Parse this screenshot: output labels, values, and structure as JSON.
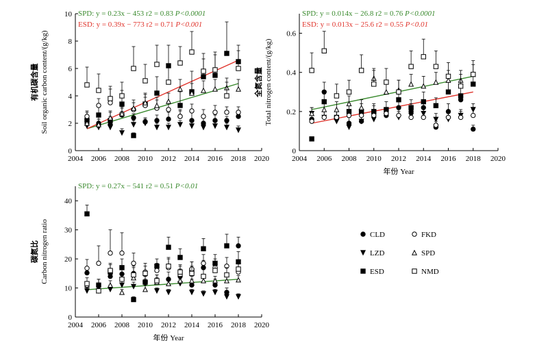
{
  "colors": {
    "SPD": "#3a8a2e",
    "ESD": "#e0332b",
    "axis": "#000000"
  },
  "chart_data": [
    {
      "type": "scatter",
      "xlabel": "",
      "ylabel_cn": "有机碳含量",
      "ylabel": "Soil organic carbon content/(g/kg)",
      "xlim": [
        2004,
        2020
      ],
      "ylim": [
        0,
        10
      ],
      "xticks": [
        "2004",
        "2006",
        "2008",
        "2010",
        "2012",
        "2014",
        "2016",
        "2018",
        "2020"
      ],
      "yticks": [
        "0",
        "2",
        "4",
        "6",
        "8",
        "10"
      ],
      "eq_lines": [
        {
          "series": "SPD",
          "label": "SPD:",
          "equation": "y = 0.23x − 453",
          "r2": "r2 = 0.83",
          "p": "P<0.0001"
        },
        {
          "series": "ESD",
          "label": "ESD:",
          "equation": "y = 0.39x − 773",
          "r2": "r2 = 0.71",
          "p": "P<0.001"
        }
      ],
      "trend_lines": [
        {
          "series": "SPD",
          "x": [
            2005,
            2018
          ],
          "y": [
            1.6,
            4.9
          ]
        },
        {
          "series": "ESD",
          "x": [
            2005,
            2018
          ],
          "y": [
            1.6,
            6.6
          ]
        }
      ],
      "series": [
        {
          "name": "CLD",
          "x": [
            2005,
            2006,
            2007,
            2008,
            2009,
            2010,
            2011,
            2012,
            2013,
            2014,
            2015,
            2016,
            2017,
            2018
          ],
          "y": [
            2.3,
            2.0,
            1.9,
            2.6,
            2.4,
            2.1,
            2.2,
            2.3,
            2.5,
            2.2,
            2.0,
            2.2,
            2.2,
            2.5
          ],
          "err": [
            0.3,
            0.5,
            0.6,
            0.5,
            0.3,
            0.3,
            0.4,
            0.5,
            0.5,
            0.7,
            0.5,
            0.4,
            0.3,
            0.4
          ]
        },
        {
          "name": "LZD",
          "x": [
            2005,
            2006,
            2007,
            2008,
            2009,
            2010,
            2011,
            2012,
            2013,
            2014,
            2015,
            2016,
            2017,
            2018
          ],
          "y": [
            1.8,
            1.7,
            1.7,
            1.3,
            1.9,
            2.0,
            1.7,
            1.7,
            1.9,
            1.8,
            1.7,
            1.8,
            1.7,
            1.5
          ],
          "err": [
            0.3,
            0.4,
            0.4,
            0.3,
            0.3,
            0.3,
            0.3,
            0.3,
            0.3,
            0.3,
            0.3,
            0.3,
            0.3,
            0.3
          ]
        },
        {
          "name": "ESD",
          "x": [
            2005,
            2006,
            2007,
            2008,
            2009,
            2010,
            2011,
            2012,
            2013,
            2014,
            2015,
            2016,
            2017,
            2018
          ],
          "y": [
            2.2,
            2.6,
            2.2,
            3.4,
            1.1,
            3.4,
            4.2,
            6.2,
            3.3,
            4.3,
            5.4,
            5.5,
            7.1,
            6.5
          ],
          "err": [
            0.6,
            0.8,
            0.6,
            1.0,
            0.2,
            0.8,
            1.2,
            1.5,
            1.0,
            1.5,
            1.3,
            1.5,
            2.3,
            1.2
          ]
        },
        {
          "name": "FKD",
          "x": [
            2005,
            2006,
            2007,
            2008,
            2009,
            2010,
            2011,
            2012,
            2013,
            2014,
            2015,
            2016,
            2017,
            2018
          ],
          "y": [
            2.5,
            3.3,
            3.5,
            2.7,
            3.0,
            3.3,
            3.1,
            3.0,
            2.5,
            2.9,
            2.5,
            2.8,
            2.8,
            2.8
          ],
          "err": [
            0.4,
            0.5,
            1.0,
            0.8,
            0.5,
            0.6,
            0.6,
            0.6,
            0.4,
            0.5,
            0.5,
            0.5,
            0.4,
            0.4
          ]
        },
        {
          "name": "SPD",
          "x": [
            2005,
            2006,
            2007,
            2008,
            2009,
            2010,
            2011,
            2012,
            2013,
            2014,
            2015,
            2016,
            2017,
            2018
          ],
          "y": [
            2.0,
            1.9,
            2.4,
            2.7,
            3.1,
            3.5,
            3.3,
            3.6,
            4.5,
            4.2,
            4.4,
            4.5,
            4.6,
            4.5
          ],
          "err": [
            0.3,
            0.4,
            0.5,
            0.5,
            0.6,
            0.6,
            0.6,
            0.6,
            0.7,
            0.7,
            0.7,
            0.7,
            0.7,
            0.7
          ]
        },
        {
          "name": "NMD",
          "x": [
            2005,
            2006,
            2007,
            2008,
            2009,
            2010,
            2011,
            2012,
            2013,
            2014,
            2015,
            2016,
            2017,
            2018
          ],
          "y": [
            4.8,
            4.4,
            3.8,
            4.0,
            6.0,
            5.1,
            6.3,
            5.0,
            6.4,
            7.2,
            5.8,
            5.9,
            4.0,
            6.0
          ],
          "err": [
            1.3,
            1.2,
            0.9,
            1.0,
            1.6,
            1.2,
            1.4,
            1.2,
            1.2,
            1.5,
            1.3,
            1.3,
            1.0,
            1.3
          ]
        }
      ]
    },
    {
      "type": "scatter",
      "xlabel": "年份 Year",
      "ylabel_cn": "全氮含量",
      "ylabel": "Total nitrogen content/(g/kg)",
      "xlim": [
        2004,
        2020
      ],
      "ylim": [
        0,
        0.7
      ],
      "xticks": [
        "2004",
        "2006",
        "2008",
        "2010",
        "2012",
        "2014",
        "2016",
        "2018",
        "2020"
      ],
      "yticks": [
        "0",
        "0.2",
        "0.4",
        "0.6"
      ],
      "eq_lines": [
        {
          "series": "SPD",
          "label": "SPD:",
          "equation": "y = 0.014x − 26.8",
          "r2": "r2 = 0.76",
          "p": "P<0.0001"
        },
        {
          "series": "ESD",
          "label": "ESD:",
          "equation": "y = 0.013x − 25.6",
          "r2": "r2 = 0.55",
          "p": "P<0.01"
        }
      ],
      "trend_lines": [
        {
          "series": "SPD",
          "x": [
            2005,
            2018
          ],
          "y": [
            0.21,
            0.38
          ]
        },
        {
          "series": "ESD",
          "x": [
            2005,
            2018
          ],
          "y": [
            0.14,
            0.3
          ]
        }
      ],
      "series": [
        {
          "name": "CLD",
          "x": [
            2005,
            2006,
            2007,
            2008,
            2009,
            2010,
            2011,
            2012,
            2013,
            2014,
            2015,
            2016,
            2017,
            2018
          ],
          "y": [
            0.16,
            0.3,
            0.17,
            0.14,
            0.15,
            0.19,
            0.18,
            0.22,
            0.2,
            0.22,
            0.12,
            0.2,
            0.26,
            0.11
          ],
          "err": [
            0.02,
            0.05,
            0.03,
            0.03,
            0.03,
            0.04,
            0.03,
            0.04,
            0.04,
            0.04,
            0.02,
            0.04,
            0.03,
            0.02
          ]
        },
        {
          "name": "LZD",
          "x": [
            2005,
            2006,
            2007,
            2008,
            2009,
            2010,
            2011,
            2012,
            2013,
            2014,
            2015,
            2016,
            2017,
            2018
          ],
          "y": [
            0.19,
            0.17,
            0.15,
            0.12,
            0.15,
            0.16,
            0.18,
            0.17,
            0.18,
            0.19,
            0.16,
            0.16,
            0.18,
            0.21
          ],
          "err": [
            0.03,
            0.03,
            0.03,
            0.02,
            0.03,
            0.03,
            0.03,
            0.03,
            0.03,
            0.03,
            0.03,
            0.03,
            0.03,
            0.03
          ]
        },
        {
          "name": "ESD",
          "x": [
            2005,
            2006,
            2007,
            2008,
            2009,
            2010,
            2011,
            2012,
            2013,
            2014,
            2015,
            2016,
            2017,
            2018
          ],
          "y": [
            0.06,
            0.25,
            0.17,
            0.2,
            0.2,
            0.2,
            0.21,
            0.26,
            0.22,
            0.25,
            0.23,
            0.3,
            0.28,
            0.34
          ],
          "err": [
            0.01,
            0.04,
            0.03,
            0.04,
            0.04,
            0.04,
            0.04,
            0.04,
            0.04,
            0.05,
            0.04,
            0.05,
            0.05,
            0.05
          ]
        },
        {
          "name": "FKD",
          "x": [
            2005,
            2006,
            2007,
            2008,
            2009,
            2010,
            2011,
            2012,
            2013,
            2014,
            2015,
            2016,
            2017,
            2018
          ],
          "y": [
            0.15,
            0.17,
            0.17,
            0.18,
            0.18,
            0.18,
            0.19,
            0.18,
            0.17,
            0.17,
            0.13,
            0.17,
            0.17,
            0.18
          ],
          "err": [
            0.02,
            0.03,
            0.03,
            0.03,
            0.03,
            0.03,
            0.03,
            0.03,
            0.03,
            0.03,
            0.02,
            0.03,
            0.03,
            0.03
          ]
        },
        {
          "name": "SPD",
          "x": [
            2005,
            2006,
            2007,
            2008,
            2009,
            2010,
            2011,
            2012,
            2013,
            2014,
            2015,
            2016,
            2017,
            2018
          ],
          "y": [
            0.19,
            0.21,
            0.21,
            0.24,
            0.22,
            0.37,
            0.3,
            0.31,
            0.34,
            0.33,
            0.35,
            0.36,
            0.36,
            0.39
          ],
          "err": [
            0.03,
            0.04,
            0.04,
            0.04,
            0.04,
            0.05,
            0.05,
            0.05,
            0.05,
            0.05,
            0.05,
            0.05,
            0.05,
            0.05
          ]
        },
        {
          "name": "NMD",
          "x": [
            2005,
            2006,
            2007,
            2008,
            2009,
            2010,
            2011,
            2012,
            2013,
            2014,
            2015,
            2016,
            2017,
            2018
          ],
          "y": [
            0.41,
            0.51,
            0.28,
            0.3,
            0.41,
            0.34,
            0.35,
            0.3,
            0.43,
            0.48,
            0.43,
            0.38,
            0.33,
            0.39
          ],
          "err": [
            0.09,
            0.1,
            0.06,
            0.06,
            0.08,
            0.07,
            0.07,
            0.06,
            0.08,
            0.09,
            0.08,
            0.07,
            0.06,
            0.07
          ]
        }
      ]
    },
    {
      "type": "scatter",
      "xlabel": "年份 Year",
      "ylabel_cn": "碳氮比",
      "ylabel": "Carbon nitrogen ratio",
      "xlim": [
        2004,
        2020
      ],
      "ylim": [
        0,
        45
      ],
      "xticks": [
        "2004",
        "2006",
        "2008",
        "2010",
        "2012",
        "2014",
        "2016",
        "2018",
        "2020"
      ],
      "yticks": [
        "0",
        "10",
        "20",
        "30",
        "40"
      ],
      "eq_lines": [
        {
          "series": "SPD",
          "label": "SPD:",
          "equation": "y = 0.27x − 541",
          "r2": "r2 = 0.51",
          "p": "P<0.01"
        }
      ],
      "trend_lines": [
        {
          "series": "SPD",
          "x": [
            2005,
            2018
          ],
          "y": [
            9.4,
            13.0
          ]
        }
      ],
      "series": [
        {
          "name": "CLD",
          "x": [
            2005,
            2006,
            2007,
            2008,
            2009,
            2010,
            2011,
            2012,
            2013,
            2014,
            2015,
            2016,
            2017,
            2018
          ],
          "y": [
            15.2,
            11.0,
            14.0,
            14.8,
            15.0,
            12.0,
            12.5,
            13.0,
            14.0,
            11.0,
            17.0,
            11.0,
            8.5,
            24.5
          ],
          "err": [
            2.0,
            2.0,
            2.5,
            2.5,
            2.5,
            2.0,
            2.0,
            2.5,
            2.5,
            2.0,
            2.5,
            2.0,
            1.5,
            3.0
          ]
        },
        {
          "name": "LZD",
          "x": [
            2005,
            2006,
            2007,
            2008,
            2009,
            2010,
            2011,
            2012,
            2013,
            2014,
            2015,
            2016,
            2017,
            2018
          ],
          "y": [
            9.0,
            9.0,
            9.5,
            11.0,
            10.5,
            11.5,
            9.0,
            8.5,
            11.5,
            8.5,
            8.0,
            8.5,
            7.0,
            7.0
          ],
          "err": [
            1.0,
            1.0,
            1.5,
            1.5,
            1.5,
            1.5,
            1.0,
            1.0,
            1.5,
            1.0,
            1.0,
            1.0,
            1.0,
            1.0
          ]
        },
        {
          "name": "ESD",
          "x": [
            2005,
            2006,
            2007,
            2008,
            2009,
            2010,
            2011,
            2012,
            2013,
            2014,
            2015,
            2016,
            2017,
            2018
          ],
          "y": [
            35.5,
            11.0,
            15.5,
            17.0,
            6.0,
            12.0,
            17.5,
            24.0,
            20.5,
            16.0,
            23.5,
            18.5,
            24.5,
            19.0
          ],
          "err": [
            3.0,
            2.0,
            2.5,
            3.0,
            1.0,
            2.0,
            2.5,
            3.5,
            3.0,
            3.0,
            3.5,
            3.0,
            4.0,
            3.5
          ]
        },
        {
          "name": "FKD",
          "x": [
            2005,
            2006,
            2007,
            2008,
            2009,
            2010,
            2011,
            2012,
            2013,
            2014,
            2015,
            2016,
            2017,
            2018
          ],
          "y": [
            16.8,
            18.5,
            22.0,
            22.0,
            18.5,
            15.5,
            16.0,
            17.0,
            14.5,
            16.5,
            18.5,
            17.0,
            17.5,
            15.5
          ],
          "err": [
            3.0,
            6.0,
            8.0,
            7.0,
            3.5,
            3.0,
            2.5,
            3.0,
            3.0,
            2.5,
            3.0,
            3.0,
            3.0,
            3.0
          ]
        },
        {
          "name": "SPD",
          "x": [
            2005,
            2006,
            2007,
            2008,
            2009,
            2010,
            2011,
            2012,
            2013,
            2014,
            2015,
            2016,
            2017,
            2018
          ],
          "y": [
            11.0,
            9.0,
            11.0,
            8.5,
            13.5,
            9.5,
            12.0,
            11.5,
            12.5,
            12.5,
            12.5,
            12.5,
            12.5,
            12.8
          ],
          "err": [
            1.0,
            1.0,
            1.5,
            1.0,
            2.0,
            1.5,
            1.5,
            1.5,
            1.5,
            1.5,
            1.5,
            1.5,
            1.5,
            1.5
          ]
        },
        {
          "name": "NMD",
          "x": [
            2005,
            2006,
            2007,
            2008,
            2009,
            2010,
            2011,
            2012,
            2013,
            2014,
            2015,
            2016,
            2017,
            2018
          ],
          "y": [
            11.5,
            9.0,
            16.0,
            13.0,
            14.5,
            15.0,
            12.5,
            17.5,
            15.5,
            15.0,
            14.0,
            16.0,
            14.5,
            16.5
          ],
          "err": [
            2.0,
            1.5,
            2.5,
            2.0,
            2.5,
            2.5,
            2.0,
            3.0,
            2.5,
            2.5,
            2.5,
            2.5,
            2.5,
            3.0
          ]
        }
      ]
    }
  ],
  "legend": {
    "items": [
      {
        "name": "CLD",
        "marker": "filled-circle"
      },
      {
        "name": "FKD",
        "marker": "open-circle"
      },
      {
        "name": "LZD",
        "marker": "filled-triangle-down"
      },
      {
        "name": "SPD",
        "marker": "open-triangle-up"
      },
      {
        "name": "ESD",
        "marker": "filled-square"
      },
      {
        "name": "NMD",
        "marker": "open-square"
      }
    ]
  }
}
